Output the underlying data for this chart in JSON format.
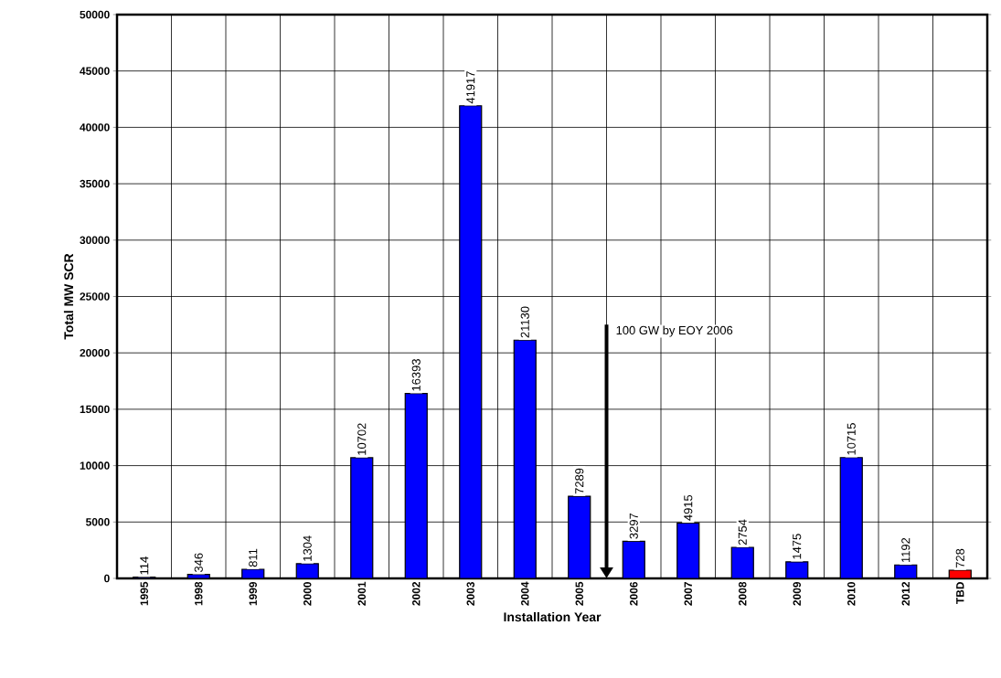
{
  "chart_data": {
    "type": "bar",
    "xlabel": "Installation Year",
    "ylabel": "Total MW SCR",
    "categories": [
      "1995",
      "1998",
      "1999",
      "2000",
      "2001",
      "2002",
      "2003",
      "2004",
      "2005",
      "2006",
      "2007",
      "2008",
      "2009",
      "2010",
      "2012",
      "TBD"
    ],
    "series": [
      {
        "colors": [
          "#0000ff",
          "#0000ff",
          "#0000ff",
          "#0000ff",
          "#0000ff",
          "#0000ff",
          "#0000ff",
          "#0000ff",
          "#0000ff",
          "#0000ff",
          "#0000ff",
          "#0000ff",
          "#0000ff",
          "#0000ff",
          "#0000ff",
          "#ff0000"
        ],
        "values": [
          114,
          346,
          811,
          1304,
          10702,
          16393,
          41917,
          21130,
          7289,
          3297,
          4915,
          2754,
          1475,
          10715,
          1192,
          728
        ]
      }
    ],
    "data_labels": true,
    "ylim": [
      0,
      50000
    ],
    "yticks": [
      0,
      5000,
      10000,
      15000,
      20000,
      25000,
      30000,
      35000,
      40000,
      45000,
      50000
    ],
    "grid": true,
    "annotations": [
      "100 GW by EOY 2006"
    ]
  }
}
